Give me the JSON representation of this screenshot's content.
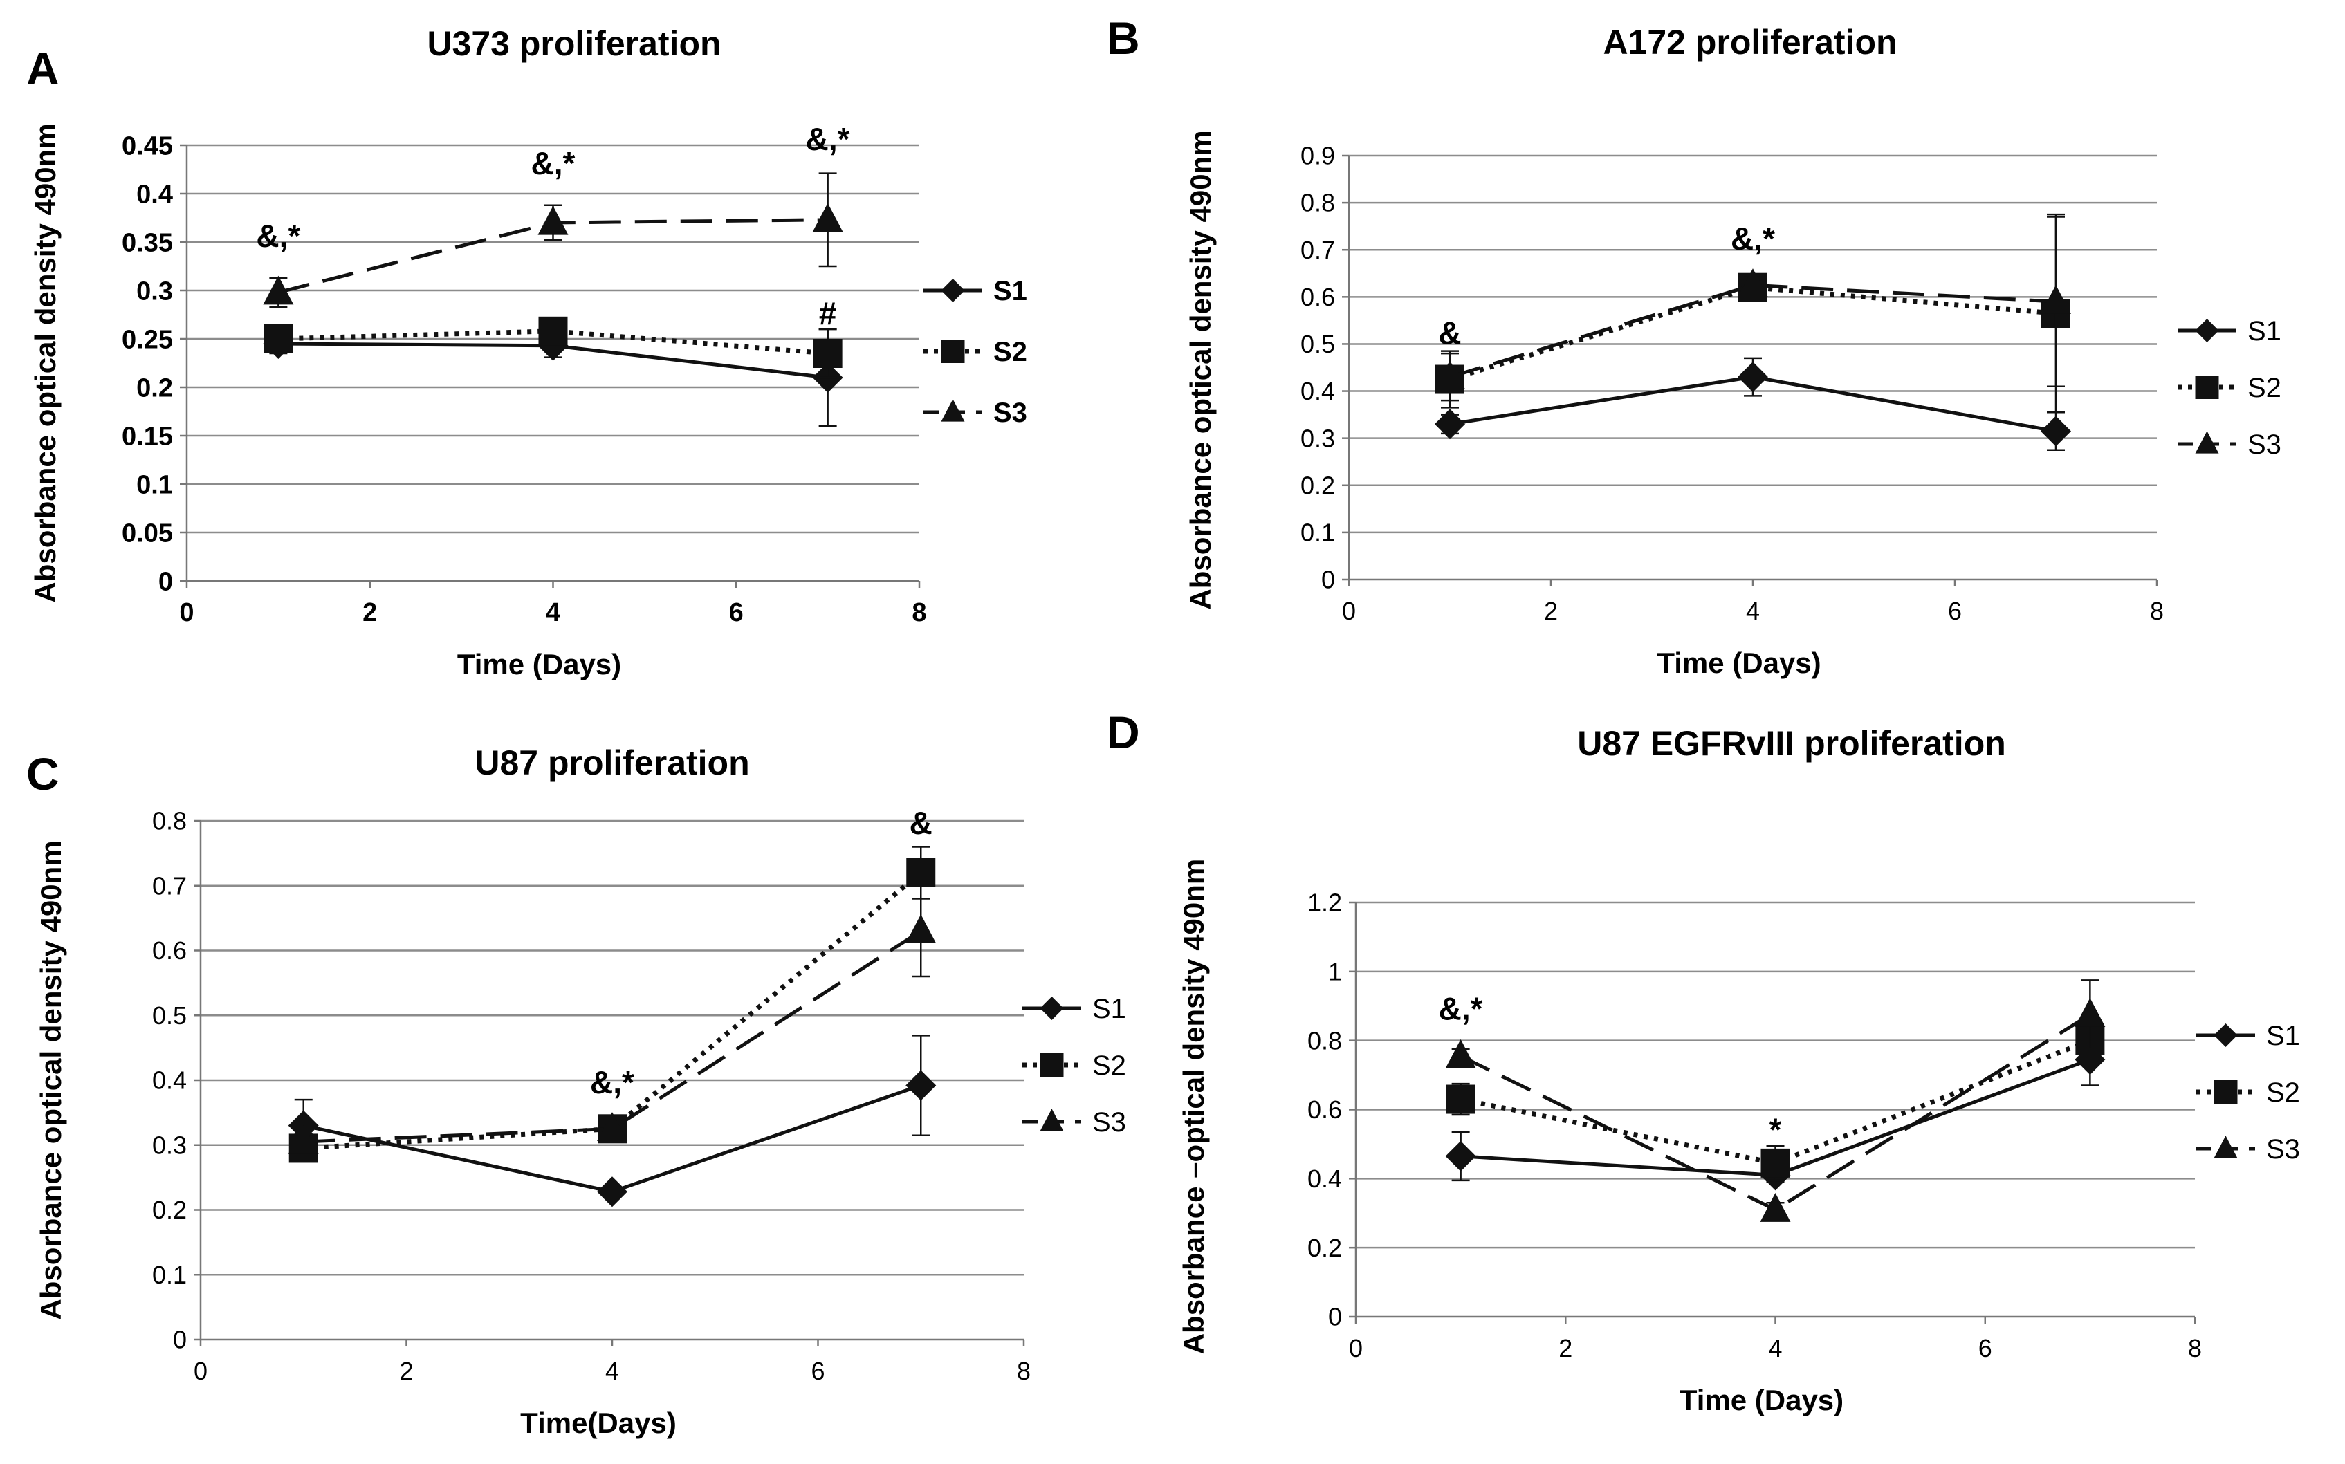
{
  "chart_data": [
    {
      "panel": "A",
      "type": "line",
      "title": "U373 proliferation",
      "xlabel": "Time (Days)",
      "ylabel": "Absorbance optical density 490nm",
      "x": [
        1,
        4,
        7
      ],
      "xlim": [
        0,
        8
      ],
      "xticks": [
        "0",
        "2",
        "4",
        "6",
        "8"
      ],
      "ylim": [
        0,
        0.45
      ],
      "yticks": [
        "0",
        "0.05",
        "0.1",
        "0.15",
        "0.2",
        "0.25",
        "0.3",
        "0.35",
        "0.4",
        "0.45"
      ],
      "legend": "right",
      "bold_text": true,
      "series": [
        {
          "name": "S1",
          "marker": "diamond",
          "line": "solid",
          "values": [
            0.245,
            0.243,
            0.21
          ],
          "errors": [
            0.01,
            0.012,
            0.05
          ]
        },
        {
          "name": "S2",
          "marker": "square",
          "line": "dotted",
          "values": [
            0.25,
            0.258,
            0.235
          ],
          "errors": [
            0.008,
            0.008,
            0.025
          ]
        },
        {
          "name": "S3",
          "marker": "triangle",
          "line": "dashed",
          "values": [
            0.298,
            0.37,
            0.373
          ],
          "errors": [
            0.015,
            0.018,
            0.048
          ]
        }
      ],
      "annotations": [
        {
          "text": "&,*",
          "x": 1,
          "y": 0.345
        },
        {
          "text": "&,*",
          "x": 4,
          "y": 0.42
        },
        {
          "text": "&,*",
          "x": 7,
          "y": 0.445
        },
        {
          "text": "#",
          "x": 7,
          "y": 0.265
        }
      ]
    },
    {
      "panel": "B",
      "type": "line",
      "title": "A172 proliferation",
      "xlabel": "Time (Days)",
      "ylabel": "Absorbance optical density 490nm",
      "x": [
        1,
        4,
        7
      ],
      "xlim": [
        0,
        8
      ],
      "xticks": [
        "0",
        "2",
        "4",
        "6",
        "8"
      ],
      "ylim": [
        0,
        0.9
      ],
      "yticks": [
        "0",
        "0.1",
        "0.2",
        "0.3",
        "0.4",
        "0.5",
        "0.6",
        "0.7",
        "0.8",
        "0.9"
      ],
      "legend": "right",
      "bold_text": false,
      "series": [
        {
          "name": "S1",
          "marker": "diamond",
          "line": "solid",
          "values": [
            0.33,
            0.43,
            0.315
          ],
          "errors": [
            0.02,
            0.04,
            0.04
          ]
        },
        {
          "name": "S2",
          "marker": "square",
          "line": "dotted",
          "values": [
            0.425,
            0.62,
            0.565
          ],
          "errors": [
            0.06,
            0.02,
            0.21
          ]
        },
        {
          "name": "S3",
          "marker": "triangle",
          "line": "dashed",
          "values": [
            0.43,
            0.625,
            0.59
          ],
          "errors": [
            0.05,
            0.02,
            0.18
          ]
        }
      ],
      "annotations": [
        {
          "text": "&",
          "x": 1,
          "y": 0.5
        },
        {
          "text": "&,*",
          "x": 4,
          "y": 0.7
        }
      ]
    },
    {
      "panel": "C",
      "type": "line",
      "title": "U87 proliferation",
      "xlabel": "Time(Days)",
      "ylabel": "Absorbance optical density 490nm",
      "x": [
        1,
        4,
        7
      ],
      "xlim": [
        0,
        8
      ],
      "xticks": [
        "0",
        "2",
        "4",
        "6",
        "8"
      ],
      "ylim": [
        0,
        0.8
      ],
      "yticks": [
        "0",
        "0.1",
        "0.2",
        "0.3",
        "0.4",
        "0.5",
        "0.6",
        "0.7",
        "0.8"
      ],
      "legend": "right",
      "bold_text": false,
      "series": [
        {
          "name": "S1",
          "marker": "diamond",
          "line": "solid",
          "values": [
            0.33,
            0.228,
            0.392
          ],
          "errors": [
            0.04,
            0.008,
            0.077
          ]
        },
        {
          "name": "S2",
          "marker": "square",
          "line": "dotted",
          "values": [
            0.295,
            0.325,
            0.72
          ],
          "errors": [
            0.012,
            0.012,
            0.04
          ]
        },
        {
          "name": "S3",
          "marker": "triangle",
          "line": "dashed",
          "values": [
            0.305,
            0.325,
            0.63
          ],
          "errors": [
            0.012,
            0.012,
            0.07
          ]
        }
      ],
      "annotations": [
        {
          "text": "&,*",
          "x": 4,
          "y": 0.38
        },
        {
          "text": "&",
          "x": 7,
          "y": 0.78
        }
      ]
    },
    {
      "panel": "D",
      "type": "line",
      "title": "U87 EGFRvIII  proliferation",
      "xlabel": "Time (Days)",
      "ylabel": "Absorbance –optical density 490nm",
      "x": [
        1,
        4,
        7
      ],
      "xlim": [
        0,
        8
      ],
      "xticks": [
        "0",
        "2",
        "4",
        "6",
        "8"
      ],
      "ylim": [
        0,
        1.2
      ],
      "yticks": [
        "0",
        "0.2",
        "0.4",
        "0.6",
        "0.8",
        "1",
        "1.2"
      ],
      "legend": "right",
      "bold_text": false,
      "series": [
        {
          "name": "S1",
          "marker": "diamond",
          "line": "solid",
          "values": [
            0.465,
            0.41,
            0.745
          ],
          "errors": [
            0.07,
            0.02,
            0.075
          ]
        },
        {
          "name": "S2",
          "marker": "square",
          "line": "dotted",
          "values": [
            0.63,
            0.445,
            0.8
          ],
          "errors": [
            0.045,
            0.05,
            0.04
          ]
        },
        {
          "name": "S3",
          "marker": "triangle",
          "line": "dashed",
          "values": [
            0.755,
            0.31,
            0.875
          ],
          "errors": [
            0.02,
            0.02,
            0.1
          ]
        }
      ],
      "annotations": [
        {
          "text": "&,*",
          "x": 1,
          "y": 0.86
        },
        {
          "text": "*",
          "x": 4,
          "y": 0.51
        }
      ]
    }
  ]
}
